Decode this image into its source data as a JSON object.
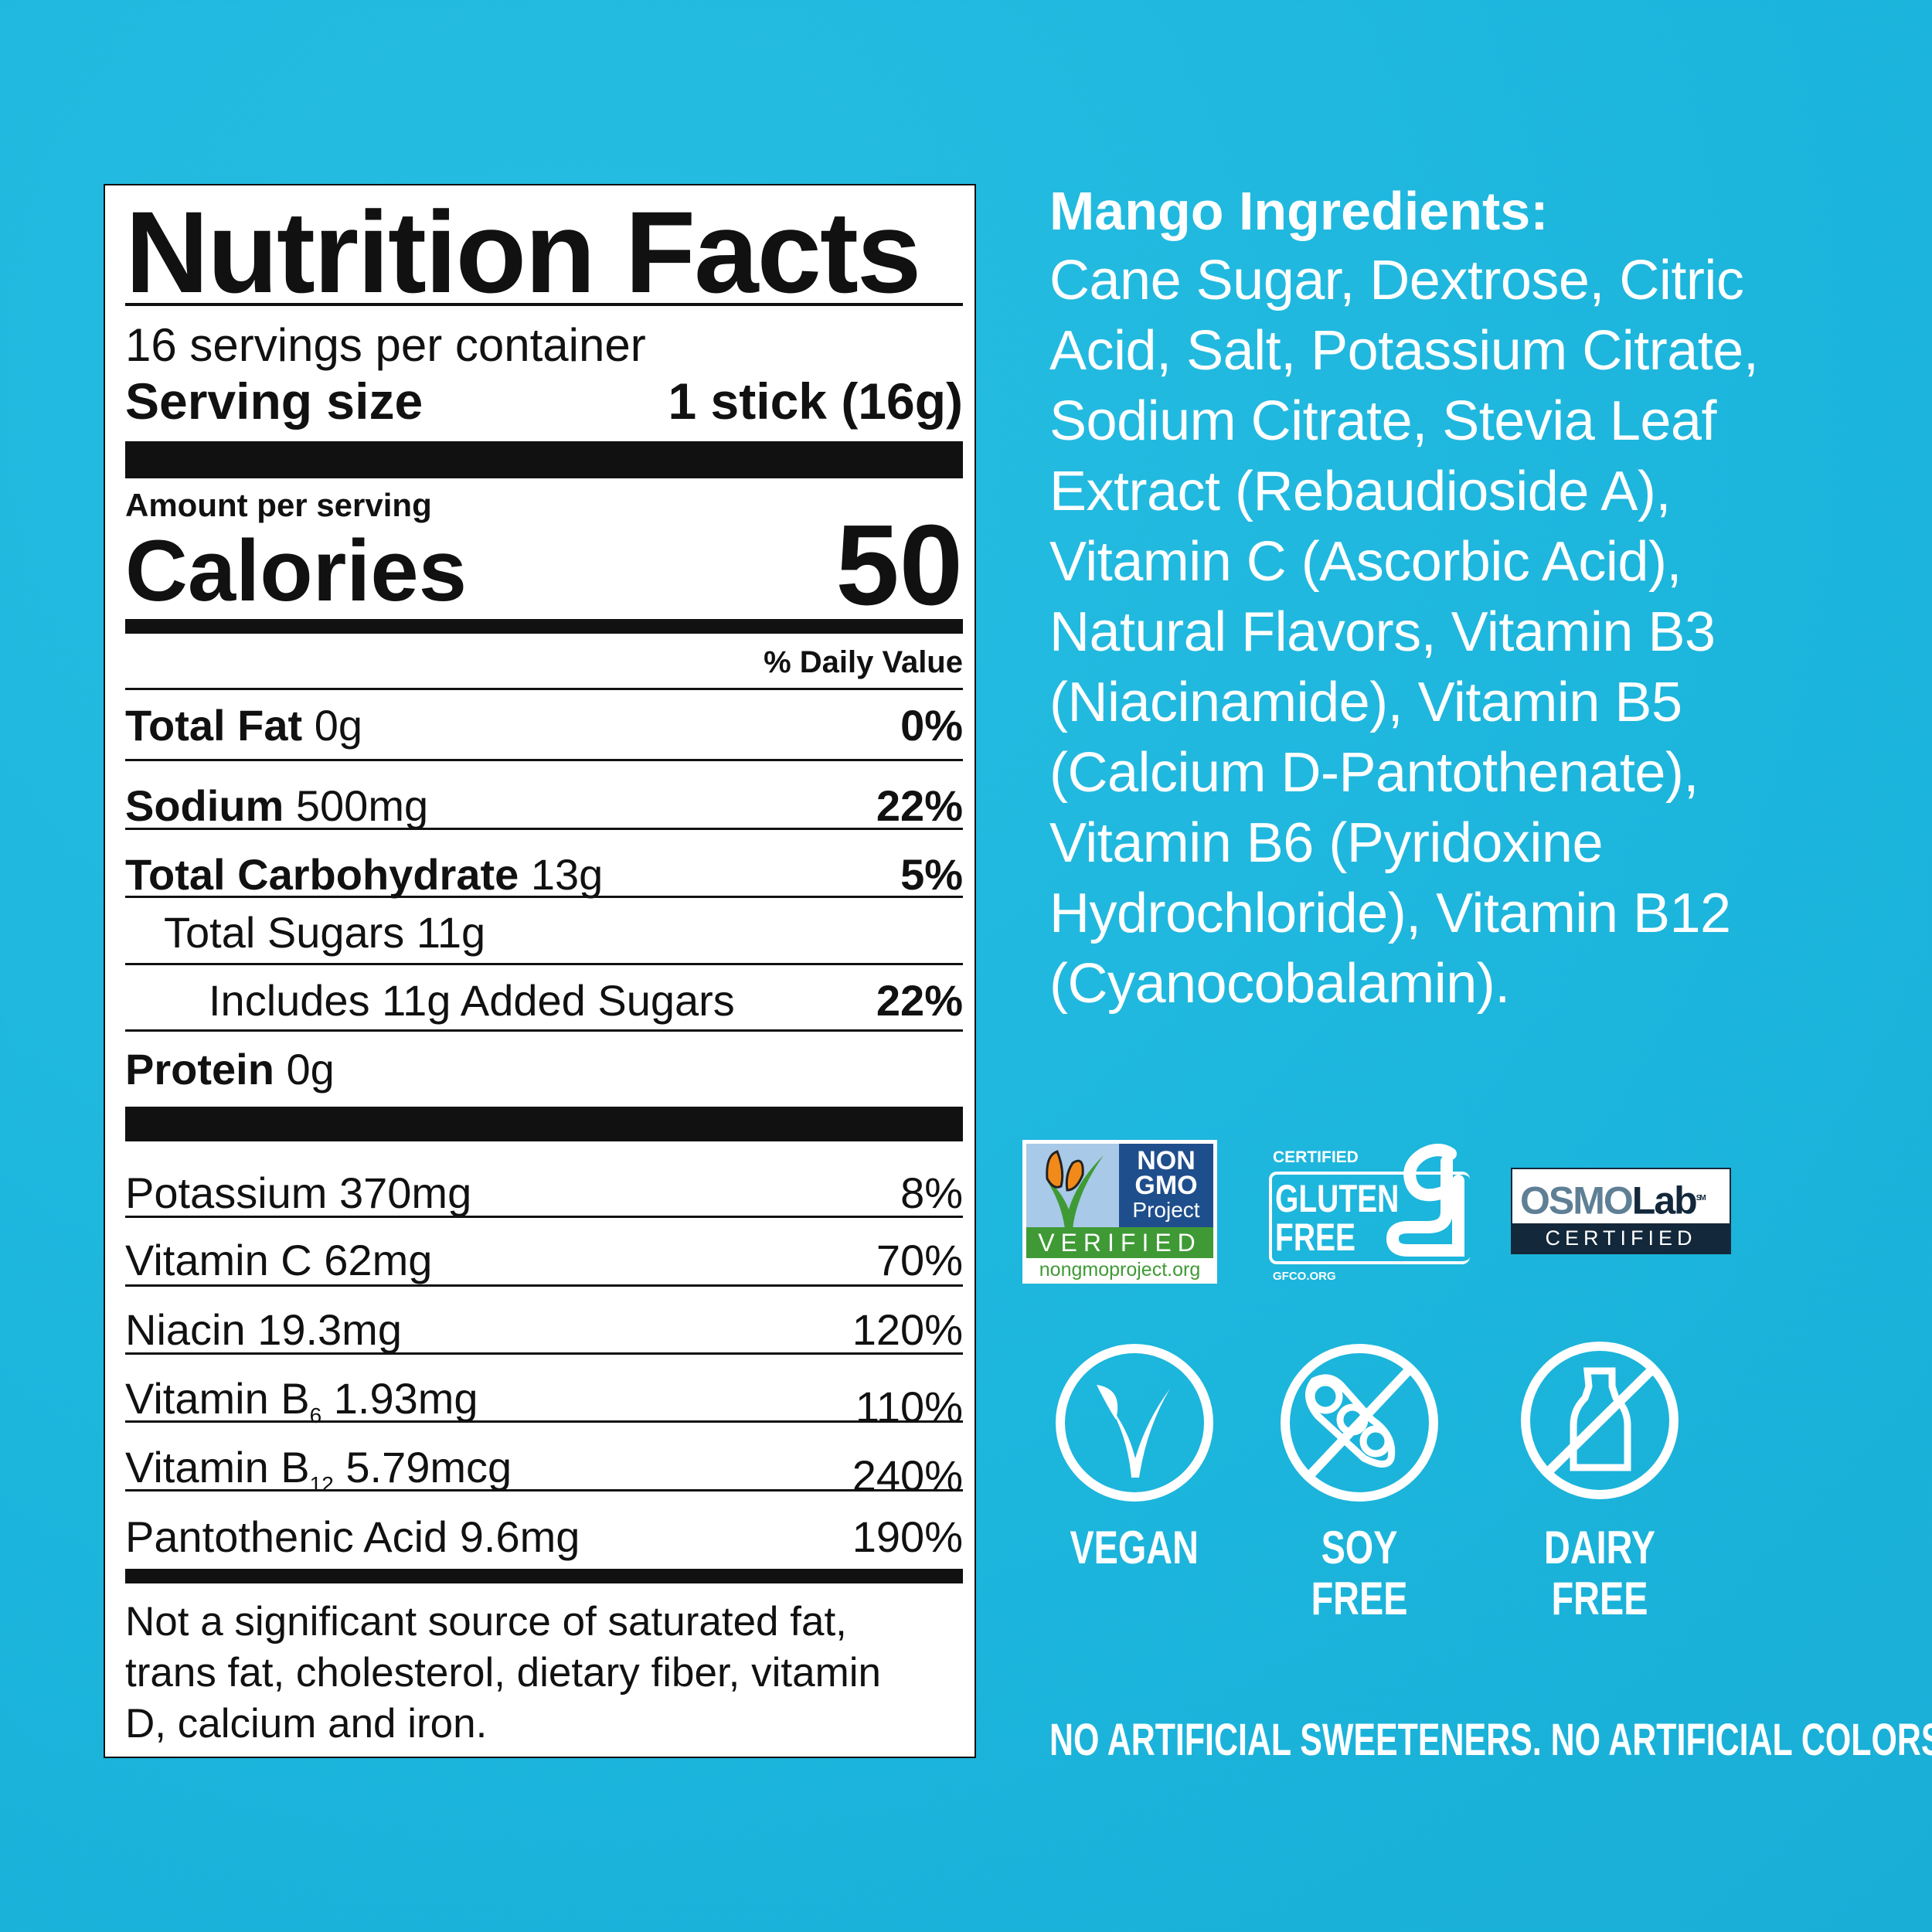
{
  "colors": {
    "background": "#1cb5dc",
    "label_bg": "#ffffff",
    "text": "#111111",
    "nongmo_blue": "#1f4e8c",
    "nongmo_green": "#3f9a35",
    "osmo_dark": "#13283a"
  },
  "label": {
    "title": "Nutrition Facts",
    "servings": "16 servings per container",
    "serving_size_label": "Serving size",
    "serving_size_value": "1 stick (16g)",
    "amount_per_serving": "Amount per serving",
    "calories_label": "Calories",
    "calories_value": "50",
    "daily_value_header": "% Daily Value",
    "macros": [
      {
        "name": "Total Fat",
        "amount": "0g",
        "dv": "0%"
      },
      {
        "name": "Sodium",
        "amount": "500mg",
        "dv": "22%"
      },
      {
        "name": "Total Carbohydrate",
        "amount": "13g",
        "dv": "5%"
      },
      {
        "name": "Total Sugars",
        "amount": "11g",
        "dv": ""
      },
      {
        "name": "Includes 11g Added Sugars",
        "amount": "",
        "dv": "22%"
      },
      {
        "name": "Protein",
        "amount": "0g",
        "dv": ""
      }
    ],
    "micros": [
      {
        "name": "Potassium",
        "sub": "",
        "amount": "370mg",
        "dv": "8%"
      },
      {
        "name": "Vitamin C",
        "sub": "",
        "amount": "62mg",
        "dv": "70%"
      },
      {
        "name": "Niacin",
        "sub": "",
        "amount": "19.3mg",
        "dv": "120%"
      },
      {
        "name": "Vitamin B",
        "sub": "6",
        "amount": "1.93mg",
        "dv": "110%"
      },
      {
        "name": "Vitamin B",
        "sub": "12",
        "amount": "5.79mcg",
        "dv": "240%"
      },
      {
        "name": "Pantothenic Acid",
        "sub": "",
        "amount": "9.6mg",
        "dv": "190%"
      }
    ],
    "footnote": [
      "Not a significant source of saturated fat,",
      "trans fat, cholesterol, dietary fiber, vitamin",
      "D, calcium and iron."
    ]
  },
  "ingredients": {
    "title": "Mango Ingredients:",
    "lines": [
      "Cane Sugar, Dextrose, Citric",
      "Acid, Salt, Potassium Citrate,",
      "Sodium Citrate, Stevia Leaf",
      "Extract (Rebaudioside A),",
      "Vitamin C (Ascorbic Acid),",
      "Natural Flavors, Vitamin B3",
      "(Niacinamide), Vitamin B5",
      "(Calcium D-Pantothenate),",
      "Vitamin B6 (Pyridoxine",
      "Hydrochloride), Vitamin B12",
      "(Cyanocobalamin)."
    ]
  },
  "certifications": {
    "nongmo": {
      "line1": "NON",
      "line2": "GMO",
      "line3": "Project",
      "verified": "VERIFIED",
      "url": "nongmoproject.org",
      "icon": "butterfly-icon"
    },
    "gluten": {
      "certified": "CERTIFIED",
      "line1": "GLUTEN",
      "line2": "FREE",
      "url": "GFCO.ORG",
      "tm": "™"
    },
    "osmo": {
      "name_a": "OSMO",
      "name_b": "Lab",
      "sm": "SM",
      "certified": "CERTIFIED"
    }
  },
  "badges": [
    {
      "label": "VEGAN",
      "icon": "vegan-leaf-icon"
    },
    {
      "label": "SOY FREE",
      "icon": "no-soy-icon"
    },
    {
      "label": "DAIRY FREE",
      "icon": "no-dairy-icon"
    }
  ],
  "bottom_note": "NO ARTIFICIAL SWEETENERS. NO ARTIFICIAL COLORS"
}
